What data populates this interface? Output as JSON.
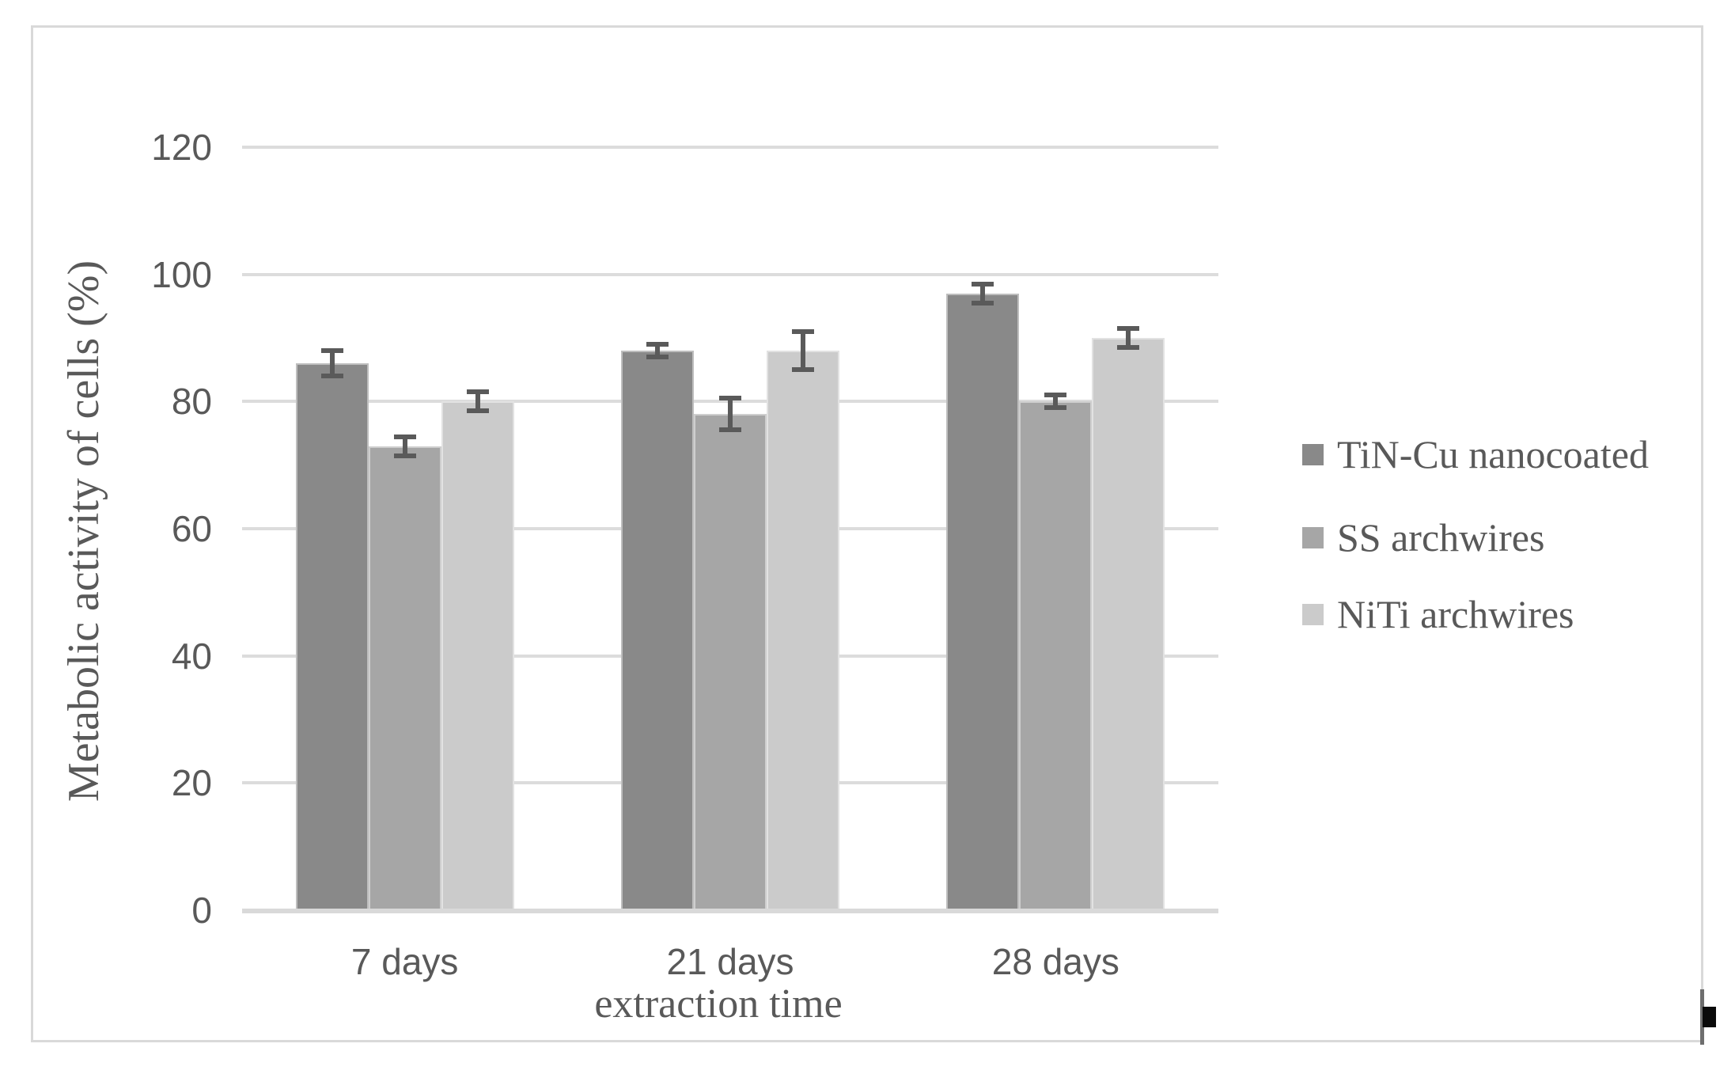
{
  "chart_data": {
    "type": "bar",
    "title": "",
    "categories": [
      "7 days",
      "21 days",
      "28 days"
    ],
    "series": [
      {
        "name": "TiN-Cu nanocoated",
        "color": "#898989",
        "values": [
          86,
          88,
          97
        ],
        "errors": [
          2,
          1,
          1.5
        ]
      },
      {
        "name": "SS archwires",
        "color": "#a6a6a6",
        "values": [
          73,
          78,
          80
        ],
        "errors": [
          1.5,
          2.5,
          1
        ]
      },
      {
        "name": "NiTi archwires",
        "color": "#cbcbcb",
        "values": [
          80,
          88,
          90
        ],
        "errors": [
          1.5,
          3,
          1.5
        ]
      }
    ],
    "xlabel": "extraction time",
    "ylabel": "Metabolic activity of cells (%)",
    "ylim": [
      0,
      120
    ],
    "yticks": [
      0,
      20,
      40,
      60,
      80,
      100,
      120
    ],
    "grid": true,
    "legend_position": "right"
  },
  "colors": {
    "text": "#595959",
    "gridline": "#dcdcdc",
    "axis_line": "#d9d9d9",
    "error_bar": "#5a5a5a",
    "frame_border": "#d9d9d9",
    "background": "#ffffff"
  }
}
